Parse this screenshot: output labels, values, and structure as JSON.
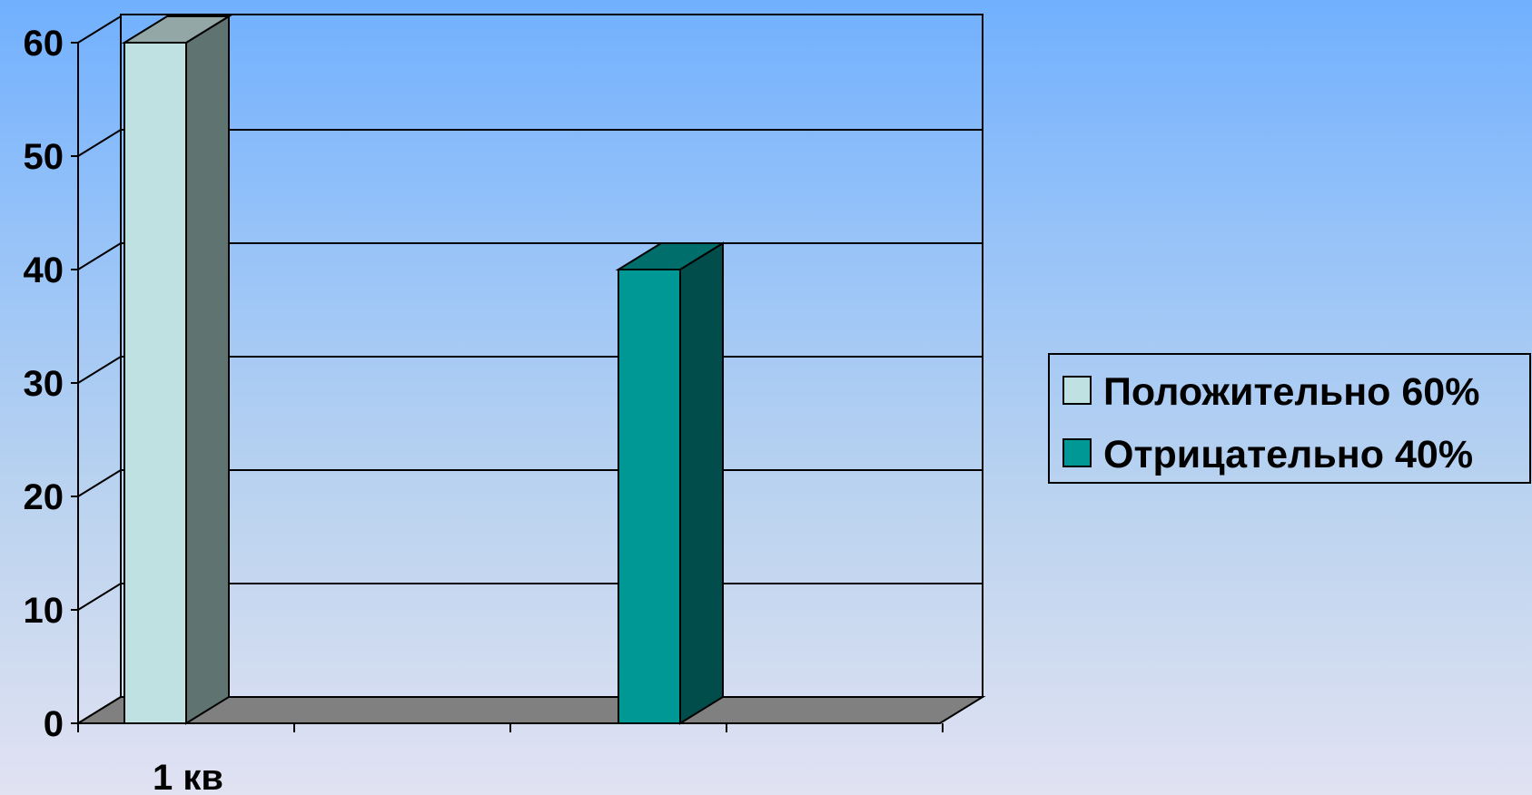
{
  "chart_data": {
    "type": "bar",
    "variant": "3d-column",
    "categories": [
      "1 кв"
    ],
    "series": [
      {
        "name": "Положительно 60%",
        "values": [
          60
        ],
        "color": "#bfe1e2"
      },
      {
        "name": "Отрицательно 40%",
        "values": [
          40
        ],
        "color": "#009895"
      }
    ],
    "y_ticks": [
      "0",
      "10",
      "20",
      "30",
      "40",
      "50",
      "60"
    ],
    "ylim": [
      0,
      60
    ],
    "grid": true,
    "legend_position": "right",
    "title": "",
    "xlabel": "",
    "ylabel": ""
  },
  "colors": {
    "background_top": "#71b0fe",
    "background_bottom": "#e1e2f2",
    "floor": "#808080",
    "series1_side": "#5f7471",
    "series2_side": "#004d4b",
    "series2_top": "#006f6c",
    "series1_top": "#92a7a6"
  }
}
